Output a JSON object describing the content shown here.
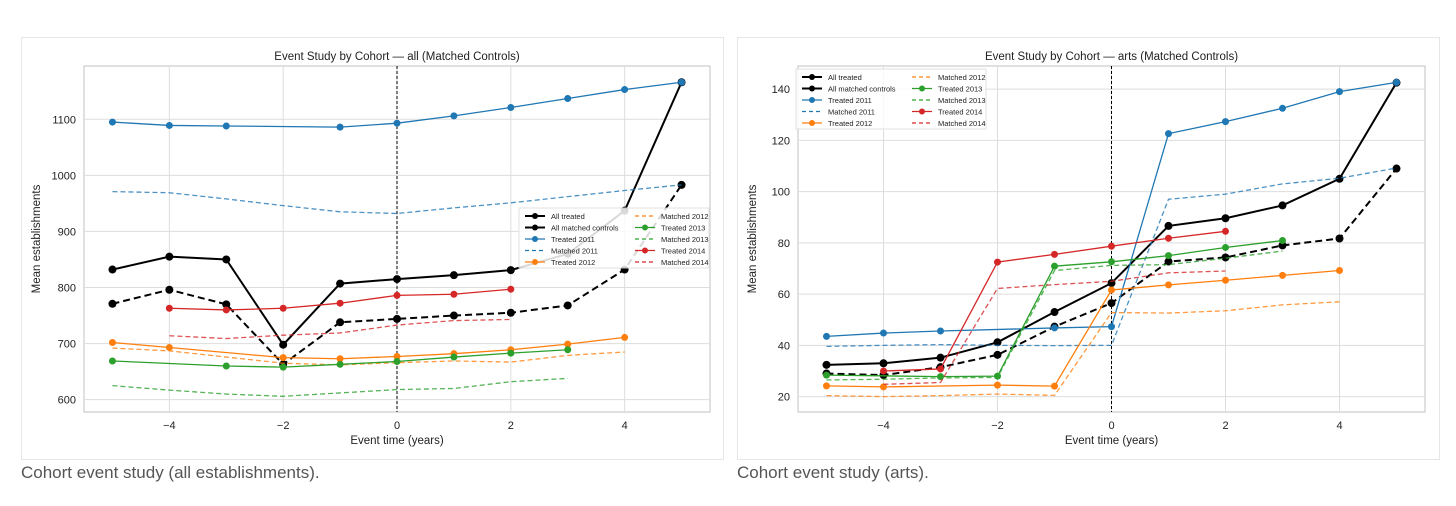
{
  "colors": {
    "2011": "#1f77b4",
    "2012": "#ff7f0e",
    "2013": "#2ca02c",
    "2014": "#d62728",
    "all": "#000000"
  },
  "captions": [
    "Cohort event study (all establishments).",
    "Cohort event study (arts)."
  ],
  "chart_data": [
    {
      "type": "line",
      "title": "Event Study by Cohort — all (Matched Controls)",
      "xlabel": "Event time (years)",
      "ylabel": "Mean establishments",
      "xlim": [
        -5.5,
        5.5
      ],
      "ylim": [
        578,
        1195
      ],
      "xticks": [
        -4,
        -2,
        0,
        2,
        4
      ],
      "yticks": [
        600,
        700,
        800,
        900,
        1000,
        1100
      ],
      "legend": "center-right",
      "grid": true,
      "series": [
        {
          "name": "All treated",
          "color": "all",
          "dash": false,
          "x": [
            -5,
            -4,
            -3,
            -2,
            -1,
            0,
            1,
            2,
            3,
            4,
            5
          ],
          "y": [
            832,
            855,
            850,
            698,
            807,
            815,
            822,
            831,
            860,
            937,
            1166
          ]
        },
        {
          "name": "All matched controls",
          "color": "all",
          "dash": true,
          "x": [
            -5,
            -4,
            -3,
            -2,
            -1,
            0,
            1,
            2,
            3,
            4,
            5
          ],
          "y": [
            771,
            796,
            770,
            663,
            738,
            744,
            750,
            755,
            768,
            832,
            983
          ]
        },
        {
          "name": "Treated 2011",
          "color": "2011",
          "dash": false,
          "x": [
            -5,
            -4,
            -3,
            -1,
            0,
            1,
            2,
            3,
            4,
            5
          ],
          "y": [
            1095,
            1089,
            1088,
            1086,
            1093,
            1106,
            1121,
            1137,
            1153,
            1166
          ]
        },
        {
          "name": "Matched 2011",
          "color": "2011",
          "dash": true,
          "x": [
            -5,
            -4,
            -3,
            -2,
            -1,
            0,
            1,
            2,
            3,
            4,
            5
          ],
          "y": [
            971,
            969,
            958,
            946,
            935,
            932,
            942,
            951,
            962,
            973,
            983
          ]
        },
        {
          "name": "Treated 2012",
          "color": "2012",
          "dash": false,
          "x": [
            -5,
            -4,
            -2,
            -1,
            0,
            1,
            2,
            3,
            4
          ],
          "y": [
            702,
            693,
            675,
            673,
            677,
            682,
            689,
            699,
            711
          ]
        },
        {
          "name": "Matched 2012",
          "color": "2012",
          "dash": true,
          "x": [
            -5,
            -4,
            -3,
            -2,
            -1,
            0,
            1,
            2,
            3,
            4
          ],
          "y": [
            692,
            687,
            676,
            665,
            662,
            666,
            669,
            667,
            679,
            685
          ]
        },
        {
          "name": "Treated 2013",
          "color": "2013",
          "dash": false,
          "x": [
            -5,
            -3,
            -2,
            -1,
            0,
            1,
            2,
            3
          ],
          "y": [
            669,
            660,
            658,
            663,
            668,
            676,
            683,
            689
          ]
        },
        {
          "name": "Matched 2013",
          "color": "2013",
          "dash": true,
          "x": [
            -5,
            -4,
            -3,
            -2,
            -1,
            0,
            1,
            2,
            3
          ],
          "y": [
            625,
            617,
            610,
            606,
            612,
            618,
            620,
            632,
            638
          ]
        },
        {
          "name": "Treated 2014",
          "color": "2014",
          "dash": false,
          "x": [
            -4,
            -3,
            -2,
            -1,
            0,
            1,
            2
          ],
          "y": [
            763,
            760,
            763,
            772,
            786,
            788,
            797
          ]
        },
        {
          "name": "Matched 2014",
          "color": "2014",
          "dash": true,
          "x": [
            -4,
            -3,
            -2,
            -1,
            0,
            1,
            2
          ],
          "y": [
            714,
            709,
            715,
            719,
            733,
            741,
            743
          ]
        }
      ]
    },
    {
      "type": "line",
      "title": "Event Study by Cohort — arts (Matched Controls)",
      "xlabel": "Event time (years)",
      "ylabel": "Mean establishments",
      "xlim": [
        -5.5,
        5.5
      ],
      "ylim": [
        14,
        149
      ],
      "xticks": [
        -4,
        -2,
        0,
        2,
        4
      ],
      "yticks": [
        20,
        40,
        60,
        80,
        100,
        120,
        140
      ],
      "legend": "upper-left",
      "grid": true,
      "series": [
        {
          "name": "All treated",
          "color": "all",
          "dash": false,
          "x": [
            -5,
            -4,
            -3,
            -2,
            -1,
            0,
            1,
            2,
            3,
            4,
            5
          ],
          "y": [
            32.4,
            33,
            35.2,
            41.2,
            53,
            64.3,
            86.6,
            89.6,
            94.6,
            105,
            142.5
          ]
        },
        {
          "name": "All matched controls",
          "color": "all",
          "dash": true,
          "x": [
            -5,
            -4,
            -3,
            -2,
            -1,
            0,
            1,
            2,
            3,
            4,
            5
          ],
          "y": [
            29,
            28.4,
            31.5,
            36.3,
            47.3,
            56.5,
            72.7,
            74.3,
            79,
            81.7,
            109
          ]
        },
        {
          "name": "Treated 2011",
          "color": "2011",
          "dash": false,
          "x": [
            -5,
            -4,
            -3,
            -1,
            0,
            1,
            2,
            3,
            4,
            5
          ],
          "y": [
            43.5,
            44.8,
            45.6,
            46.8,
            47.3,
            122.6,
            127.3,
            132.5,
            139,
            142.6
          ]
        },
        {
          "name": "Matched 2011",
          "color": "2011",
          "dash": true,
          "x": [
            -5,
            -4,
            -3,
            -2,
            -1,
            0,
            1,
            2,
            3,
            4,
            5
          ],
          "y": [
            39.6,
            40,
            40.3,
            40,
            39.9,
            40,
            97,
            99,
            103,
            105.2,
            109.2
          ]
        },
        {
          "name": "Treated 2012",
          "color": "2012",
          "dash": false,
          "x": [
            -5,
            -4,
            -2,
            -1,
            0,
            1,
            2,
            3,
            4
          ],
          "y": [
            24.2,
            23.8,
            24.5,
            24.1,
            61.6,
            63.6,
            65.4,
            67.3,
            69.2
          ]
        },
        {
          "name": "Matched 2012",
          "color": "2012",
          "dash": true,
          "x": [
            -5,
            -4,
            -3,
            -2,
            -1,
            0,
            1,
            2,
            3,
            4
          ],
          "y": [
            20.4,
            20,
            20.4,
            21,
            20.5,
            52.8,
            52.6,
            53.5,
            55.8,
            57
          ]
        },
        {
          "name": "Treated 2013",
          "color": "2013",
          "dash": false,
          "x": [
            -5,
            -3,
            -2,
            -1,
            0,
            1,
            2,
            3
          ],
          "y": [
            28.4,
            27.8,
            28,
            70.9,
            72.6,
            75,
            78.2,
            80.9
          ]
        },
        {
          "name": "Matched 2013",
          "color": "2013",
          "dash": true,
          "x": [
            -5,
            -4,
            -3,
            -2,
            -1,
            0,
            1,
            2,
            3
          ],
          "y": [
            26.5,
            26.8,
            27.3,
            27.5,
            69.2,
            71.2,
            71.5,
            74,
            76.8
          ]
        },
        {
          "name": "Treated 2014",
          "color": "2014",
          "dash": false,
          "x": [
            -4,
            -3,
            -2,
            -1,
            0,
            1,
            2
          ],
          "y": [
            30,
            30.8,
            72.5,
            75.5,
            78.7,
            81.8,
            84.5
          ]
        },
        {
          "name": "Matched 2014",
          "color": "2014",
          "dash": true,
          "x": [
            -4,
            -3,
            -2,
            -1,
            0,
            1,
            2
          ],
          "y": [
            24.8,
            25.5,
            62.2,
            63.7,
            65,
            68.3,
            69
          ]
        }
      ]
    }
  ]
}
